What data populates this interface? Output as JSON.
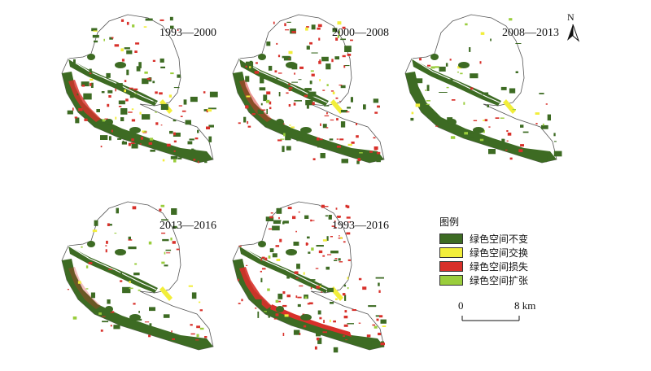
{
  "panels": [
    {
      "id": "p1",
      "period": "1993—2000"
    },
    {
      "id": "p2",
      "period": "2000—2008"
    },
    {
      "id": "p3",
      "period": "2008—2013"
    },
    {
      "id": "p4",
      "period": "2013—2016"
    },
    {
      "id": "p5",
      "period": "1993—2016"
    }
  ],
  "north_arrow": {
    "letter": "N"
  },
  "legend": {
    "title": "图例",
    "items": [
      {
        "label": "绿色空间不变",
        "color": "#3d6b23"
      },
      {
        "label": "绿色空间交换",
        "color": "#f2ee3a"
      },
      {
        "label": "绿色空间损失",
        "color": "#d8302a"
      },
      {
        "label": "绿色空间扩张",
        "color": "#9acd3c"
      }
    ]
  },
  "scale_bar": {
    "start": "0",
    "end": "8 km"
  }
}
